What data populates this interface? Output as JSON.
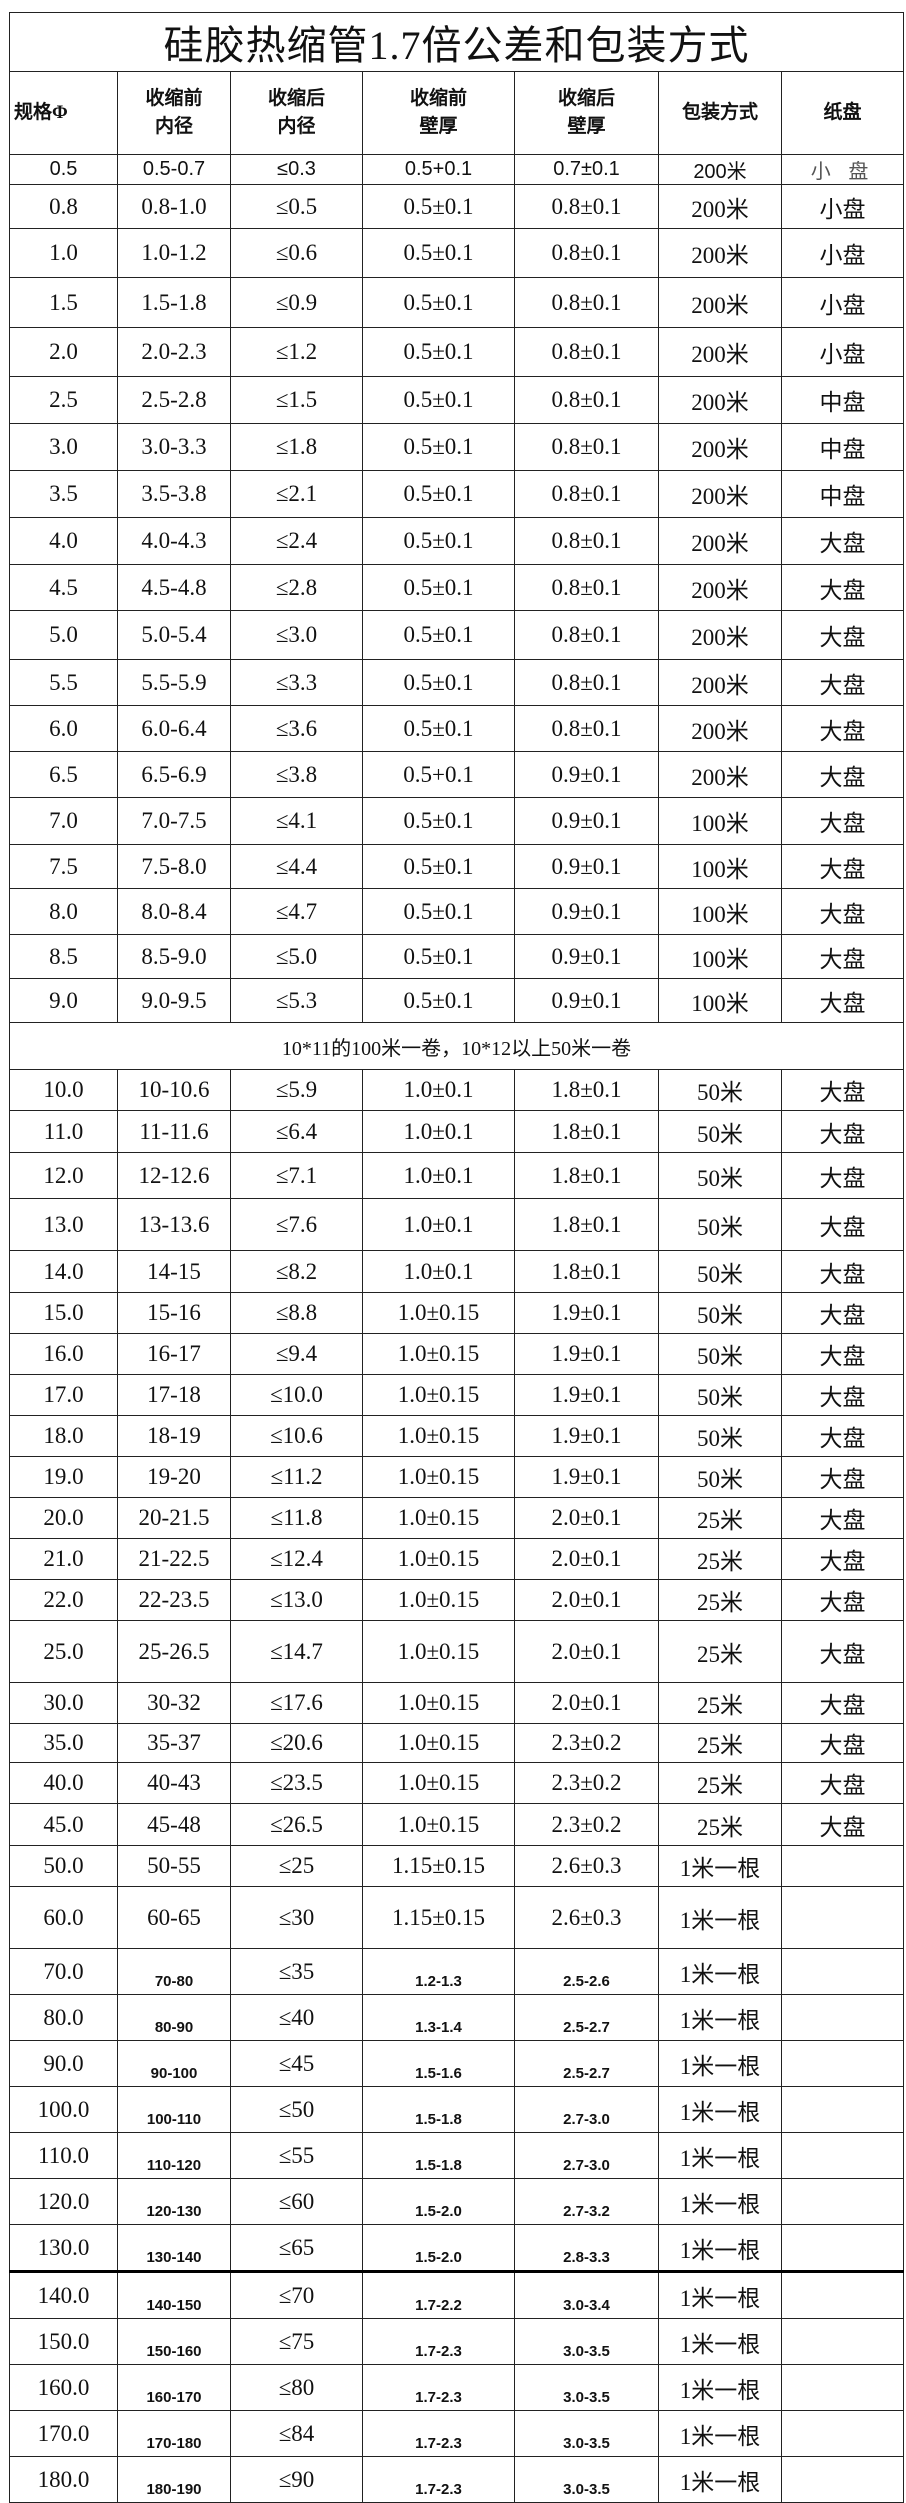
{
  "title": "硅胶热缩管1.7倍公差和包装方式",
  "headers": [
    "规格Φ",
    "收缩前\n内径",
    "收缩后\n内径",
    "收缩前\n壁厚",
    "收缩后\n壁厚",
    "包装方式",
    "纸盘"
  ],
  "note": "10*11的100米一卷，10*12以上50米一卷",
  "rows_before_note": [
    [
      "0.5",
      "0.5-0.7",
      "≤0.3",
      "0.5+0.1",
      "0.7±0.1",
      "200米",
      "小 盘"
    ],
    [
      "0.8",
      "0.8-1.0",
      "≤0.5",
      "0.5±0.1",
      "0.8±0.1",
      "200米",
      "小盘"
    ],
    [
      "1.0",
      "1.0-1.2",
      "≤0.6",
      "0.5±0.1",
      "0.8±0.1",
      "200米",
      "小盘"
    ],
    [
      "1.5",
      "1.5-1.8",
      "≤0.9",
      "0.5±0.1",
      "0.8±0.1",
      "200米",
      "小盘"
    ],
    [
      "2.0",
      "2.0-2.3",
      "≤1.2",
      "0.5±0.1",
      "0.8±0.1",
      "200米",
      "小盘"
    ],
    [
      "2.5",
      "2.5-2.8",
      "≤1.5",
      "0.5±0.1",
      "0.8±0.1",
      "200米",
      "中盘"
    ],
    [
      "3.0",
      "3.0-3.3",
      "≤1.8",
      "0.5±0.1",
      "0.8±0.1",
      "200米",
      "中盘"
    ],
    [
      "3.5",
      "3.5-3.8",
      "≤2.1",
      "0.5±0.1",
      "0.8±0.1",
      "200米",
      "中盘"
    ],
    [
      "4.0",
      "4.0-4.3",
      "≤2.4",
      "0.5±0.1",
      "0.8±0.1",
      "200米",
      "大盘"
    ],
    [
      "4.5",
      "4.5-4.8",
      "≤2.8",
      "0.5±0.1",
      "0.8±0.1",
      "200米",
      "大盘"
    ],
    [
      "5.0",
      "5.0-5.4",
      "≤3.0",
      "0.5±0.1",
      "0.8±0.1",
      "200米",
      "大盘"
    ],
    [
      "5.5",
      "5.5-5.9",
      "≤3.3",
      "0.5±0.1",
      "0.8±0.1",
      "200米",
      "大盘"
    ],
    [
      "6.0",
      "6.0-6.4",
      "≤3.6",
      "0.5±0.1",
      "0.8±0.1",
      "200米",
      "大盘"
    ],
    [
      "6.5",
      "6.5-6.9",
      "≤3.8",
      "0.5+0.1",
      "0.9±0.1",
      "200米",
      "大盘"
    ],
    [
      "7.0",
      "7.0-7.5",
      "≤4.1",
      "0.5±0.1",
      "0.9±0.1",
      "100米",
      "大盘"
    ],
    [
      "7.5",
      "7.5-8.0",
      "≤4.4",
      "0.5±0.1",
      "0.9±0.1",
      "100米",
      "大盘"
    ],
    [
      "8.0",
      "8.0-8.4",
      "≤4.7",
      "0.5±0.1",
      "0.9±0.1",
      "100米",
      "大盘"
    ],
    [
      "8.5",
      "8.5-9.0",
      "≤5.0",
      "0.5±0.1",
      "0.9±0.1",
      "100米",
      "大盘"
    ],
    [
      "9.0",
      "9.0-9.5",
      "≤5.3",
      "0.5±0.1",
      "0.9±0.1",
      "100米",
      "大盘"
    ]
  ],
  "rows_after_note": [
    [
      "10.0",
      "10-10.6",
      "≤5.9",
      "1.0±0.1",
      "1.8±0.1",
      "50米",
      "大盘"
    ],
    [
      "11.0",
      "11-11.6",
      "≤6.4",
      "1.0±0.1",
      "1.8±0.1",
      "50米",
      "大盘"
    ],
    [
      "12.0",
      "12-12.6",
      "≤7.1",
      "1.0±0.1",
      "1.8±0.1",
      "50米",
      "大盘"
    ],
    [
      "13.0",
      "13-13.6",
      "≤7.6",
      "1.0±0.1",
      "1.8±0.1",
      "50米",
      "大盘"
    ],
    [
      "14.0",
      "14-15",
      "≤8.2",
      "1.0±0.1",
      "1.8±0.1",
      "50米",
      "大盘"
    ],
    [
      "15.0",
      "15-16",
      "≤8.8",
      "1.0±0.15",
      "1.9±0.1",
      "50米",
      "大盘"
    ],
    [
      "16.0",
      "16-17",
      "≤9.4",
      "1.0±0.15",
      "1.9±0.1",
      "50米",
      "大盘"
    ],
    [
      "17.0",
      "17-18",
      "≤10.0",
      "1.0±0.15",
      "1.9±0.1",
      "50米",
      "大盘"
    ],
    [
      "18.0",
      "18-19",
      "≤10.6",
      "1.0±0.15",
      "1.9±0.1",
      "50米",
      "大盘"
    ],
    [
      "19.0",
      "19-20",
      "≤11.2",
      "1.0±0.15",
      "1.9±0.1",
      "50米",
      "大盘"
    ],
    [
      "20.0",
      "20-21.5",
      "≤11.8",
      "1.0±0.15",
      "2.0±0.1",
      "25米",
      "大盘"
    ],
    [
      "21.0",
      "21-22.5",
      "≤12.4",
      "1.0±0.15",
      "2.0±0.1",
      "25米",
      "大盘"
    ],
    [
      "22.0",
      "22-23.5",
      "≤13.0",
      "1.0±0.15",
      "2.0±0.1",
      "25米",
      "大盘"
    ],
    [
      "25.0",
      "25-26.5",
      "≤14.7",
      "1.0±0.15",
      "2.0±0.1",
      "25米",
      "大盘"
    ],
    [
      "30.0",
      "30-32",
      "≤17.6",
      "1.0±0.15",
      "2.0±0.1",
      "25米",
      "大盘"
    ],
    [
      "35.0",
      "35-37",
      "≤20.6",
      "1.0±0.15",
      "2.3±0.2",
      "25米",
      "大盘"
    ],
    [
      "40.0",
      "40-43",
      "≤23.5",
      "1.0±0.15",
      "2.3±0.2",
      "25米",
      "大盘"
    ],
    [
      "45.0",
      "45-48",
      "≤26.5",
      "1.0±0.15",
      "2.3±0.2",
      "25米",
      "大盘"
    ],
    [
      "50.0",
      "50-55",
      "≤25",
      "1.15±0.15",
      "2.6±0.3",
      "1米一根",
      ""
    ],
    [
      "60.0",
      "60-65",
      "≤30",
      "1.15±0.15",
      "2.6±0.3",
      "1米一根",
      ""
    ],
    [
      "70.0",
      "70-80",
      "≤35",
      "1.2-1.3",
      "2.5-2.6",
      "1米一根",
      ""
    ],
    [
      "80.0",
      "80-90",
      "≤40",
      "1.3-1.4",
      "2.5-2.7",
      "1米一根",
      ""
    ],
    [
      "90.0",
      "90-100",
      "≤45",
      "1.5-1.6",
      "2.5-2.7",
      "1米一根",
      ""
    ],
    [
      "100.0",
      "100-110",
      "≤50",
      "1.5-1.8",
      "2.7-3.0",
      "1米一根",
      ""
    ],
    [
      "110.0",
      "110-120",
      "≤55",
      "1.5-1.8",
      "2.7-3.0",
      "1米一根",
      ""
    ],
    [
      "120.0",
      "120-130",
      "≤60",
      "1.5-2.0",
      "2.7-3.2",
      "1米一根",
      ""
    ],
    [
      "130.0",
      "130-140",
      "≤65",
      "1.5-2.0",
      "2.8-3.3",
      "1米一根",
      ""
    ],
    [
      "140.0",
      "140-150",
      "≤70",
      "1.7-2.2",
      "3.0-3.4",
      "1米一根",
      ""
    ],
    [
      "150.0",
      "150-160",
      "≤75",
      "1.7-2.3",
      "3.0-3.5",
      "1米一根",
      ""
    ],
    [
      "160.0",
      "160-170",
      "≤80",
      "1.7-2.3",
      "3.0-3.5",
      "1米一根",
      ""
    ],
    [
      "170.0",
      "170-180",
      "≤84",
      "1.7-2.3",
      "3.0-3.5",
      "1米一根",
      ""
    ],
    [
      "180.0",
      "180-190",
      "≤90",
      "1.7-2.3",
      "3.0-3.5",
      "1米一根",
      ""
    ]
  ]
}
